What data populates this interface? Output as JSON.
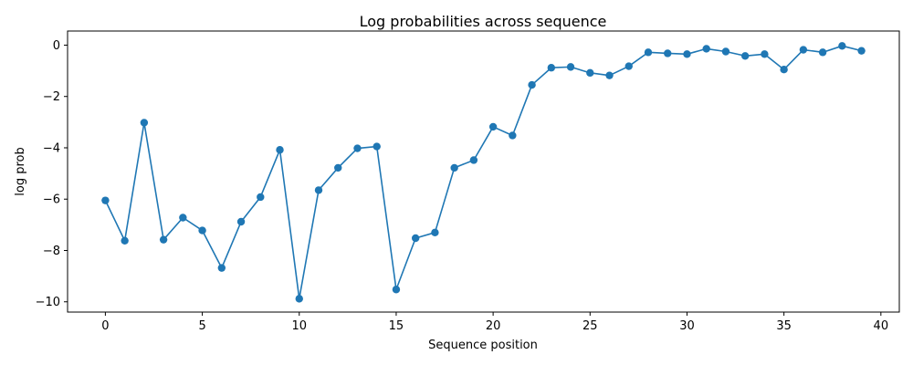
{
  "chart_data": {
    "type": "line",
    "title": "Log probabilities across sequence",
    "xlabel": "Sequence position",
    "ylabel": "log prob",
    "xlim": [
      -1.95,
      40.95
    ],
    "ylim": [
      -10.4,
      0.55
    ],
    "xticks": [
      0,
      5,
      10,
      15,
      20,
      25,
      30,
      35,
      40
    ],
    "yticks": [
      0,
      -2,
      -4,
      -6,
      -8,
      -10
    ],
    "grid": false,
    "legend": "none",
    "color": "#1f77b4",
    "markers": true,
    "series": [
      {
        "x": [
          0,
          1,
          2,
          3,
          4,
          5,
          6,
          7,
          8,
          9,
          10,
          11,
          12,
          13,
          14,
          15,
          16,
          17,
          18,
          19,
          20,
          21,
          22,
          23,
          24,
          25,
          26,
          27,
          28,
          29,
          30,
          31,
          32,
          33,
          34,
          35,
          36,
          37,
          38,
          39
        ],
        "values": [
          -6.05,
          -7.62,
          -3.02,
          -7.58,
          -6.72,
          -7.22,
          -8.68,
          -6.88,
          -5.92,
          -4.08,
          -9.88,
          -5.65,
          -4.78,
          -4.02,
          -3.95,
          -9.52,
          -7.52,
          -7.3,
          -4.78,
          -4.48,
          -3.18,
          -3.52,
          -1.55,
          -0.88,
          -0.85,
          -1.08,
          -1.18,
          -0.82,
          -0.28,
          -0.32,
          -0.35,
          -0.14,
          -0.25,
          -0.42,
          -0.35,
          -0.95,
          -0.18,
          -0.28,
          -0.03,
          -0.22
        ]
      }
    ]
  }
}
